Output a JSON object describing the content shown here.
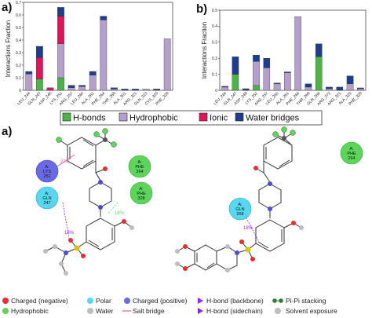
{
  "chart_data": [
    {
      "type": "bar",
      "panel_label": "a)",
      "ylabel": "Interactions Fraction",
      "ylim": [
        0,
        0.7
      ],
      "yticks": [
        "0",
        "0.1",
        "0.2",
        "0.3",
        "0.4",
        "0.5",
        "0.6",
        "0.7"
      ],
      "categories": [
        "LEU_244",
        "GLN_247",
        "ASP_248",
        "LYS_251",
        "ARG_257",
        "LEU_260",
        "ALA_261",
        "PHE_264",
        "THR_268",
        "ALA_301",
        "ARG_321",
        "GLN_323",
        "CYS_325",
        "PHE_328"
      ],
      "series": [
        {
          "name": "H-bonds",
          "values": [
            0,
            0.09,
            0,
            0.1,
            0,
            0,
            0,
            0,
            0,
            0,
            0,
            0,
            0,
            0
          ]
        },
        {
          "name": "Hydrophobic",
          "values": [
            0.13,
            0,
            0,
            0.27,
            0.02,
            0.03,
            0.12,
            0.56,
            0.01,
            0,
            0,
            0.01,
            0,
            0.41
          ]
        },
        {
          "name": "Ionic",
          "values": [
            0,
            0.17,
            0.02,
            0.22,
            0,
            0,
            0,
            0,
            0,
            0,
            0,
            0,
            0,
            0
          ]
        },
        {
          "name": "Water bridges",
          "values": [
            0.02,
            0.09,
            0,
            0.07,
            0.02,
            0.01,
            0.03,
            0.03,
            0.01,
            0.01,
            0.01,
            0,
            0.01,
            0
          ]
        }
      ]
    },
    {
      "type": "bar",
      "panel_label": "b)",
      "ylabel": "Interactions Fraction",
      "ylim": [
        0,
        0.5
      ],
      "yticks": [
        "0",
        "0.1",
        "0.2",
        "0.3",
        "0.4",
        "0.5"
      ],
      "categories": [
        "LEU_244",
        "GLN_247",
        "ASP_248",
        "LYS_251",
        "ARG_257",
        "LEU_260",
        "ALA_261",
        "PHE_264",
        "THR_268",
        "GLN_268",
        "ARG_272",
        "ARG_321",
        "ALA_325",
        "PHE_328"
      ],
      "series": [
        {
          "name": "H-bonds",
          "values": [
            0,
            0.1,
            0,
            0.03,
            0,
            0,
            0,
            0,
            0,
            0.21,
            0,
            0,
            0,
            0
          ]
        },
        {
          "name": "Hydrophobic",
          "values": [
            0.02,
            0,
            0,
            0.15,
            0.14,
            0.04,
            0.11,
            0.46,
            0.02,
            0,
            0.01,
            0,
            0.04,
            0.01
          ]
        },
        {
          "name": "Ionic",
          "values": [
            0,
            0,
            0,
            0,
            0,
            0,
            0,
            0,
            0,
            0,
            0,
            0,
            0,
            0
          ]
        },
        {
          "name": "Water bridges",
          "values": [
            0.005,
            0.11,
            0.01,
            0.04,
            0.06,
            0.005,
            0.005,
            0,
            0.02,
            0.08,
            0.01,
            0.02,
            0.05,
            0.005
          ]
        }
      ]
    }
  ],
  "legend": {
    "items": [
      {
        "label": "H-bonds",
        "color": "#4cb348"
      },
      {
        "label": "Hydrophobic",
        "color": "#b3a0cc"
      },
      {
        "label": "Ionic",
        "color": "#e0145a"
      },
      {
        "label": "Water bridges",
        "color": "#1f3d8c"
      }
    ]
  },
  "diagram_a": {
    "panel_label": "a)",
    "residues": [
      {
        "chain": "A:",
        "name": "LYS",
        "num": "251",
        "kind": "positive"
      },
      {
        "chain": "A:",
        "name": "GLN",
        "num": "247",
        "kind": "polar"
      },
      {
        "chain": "A:",
        "name": "PHE",
        "num": "264",
        "kind": "hydrophobic"
      },
      {
        "chain": "A:",
        "name": "PHE",
        "num": "328",
        "kind": "hydrophobic"
      }
    ],
    "percents": [
      "27%",
      "16%",
      "18%"
    ]
  },
  "diagram_b": {
    "residues": [
      {
        "chain": "A:",
        "name": "GLN",
        "num": "268",
        "kind": "polar"
      },
      {
        "chain": "A:",
        "name": "PHE",
        "num": "264",
        "kind": "hydrophobic"
      }
    ],
    "percents": [
      "18%"
    ]
  },
  "key": {
    "charged_negative": "Charged (negative)",
    "hydrophobic": "Hydrophobic",
    "polar": "Polar",
    "water": "Water",
    "charged_positive": "Charged (positive)",
    "salt_bridge": "Salt bridge",
    "hbond_backbone": "H-bond (backbone)",
    "hbond_sidechain": "H-bond (sidechain)",
    "pipi": "Pi-Pi stacking",
    "solvent": "Solvent exposure"
  },
  "colors": {
    "negative": "#e53030",
    "hydrophobic": "#5bd65b",
    "polar": "#58d8ee",
    "positive": "#6a6ae6",
    "water": "#bdbdbd",
    "hbond": "#a020f0",
    "pipi": "#2e7d32"
  }
}
